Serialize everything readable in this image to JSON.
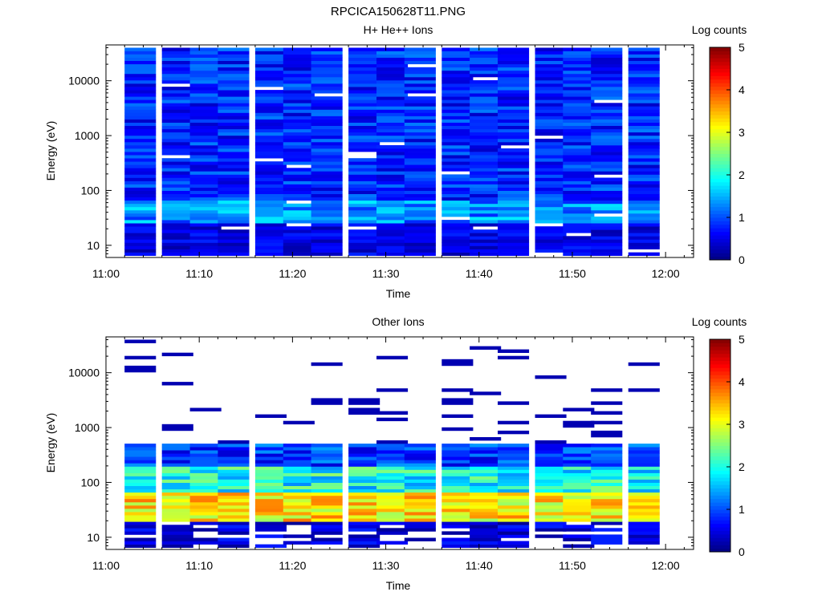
{
  "figure_title": "RPCICA150628T11.PNG",
  "colors": {
    "scale": [
      "#00007f",
      "#0000ff",
      "#007fff",
      "#00ffff",
      "#7fff7f",
      "#ffff00",
      "#ff7f00",
      "#ff0000",
      "#7f0000"
    ]
  },
  "chart_data": [
    {
      "type": "heatmap",
      "title": "H+ He++ Ions",
      "xlabel": "Time",
      "ylabel": "Energy (eV)",
      "x_ticks": [
        "11:00",
        "11:10",
        "11:20",
        "11:30",
        "11:40",
        "11:50",
        "12:00"
      ],
      "y_ticks": [
        "10",
        "100",
        "1000",
        "10000"
      ],
      "y_scale": "log",
      "xlim": [
        "11:00",
        "12:03"
      ],
      "ylim": [
        6,
        45000
      ],
      "colorbar": {
        "label": "Log counts",
        "ticks": [
          "0",
          "1",
          "2",
          "3",
          "4",
          "5"
        ],
        "range": [
          0,
          5
        ]
      },
      "time_columns": [
        "11:02",
        "11:06",
        "11:09",
        "11:12",
        "11:16",
        "11:19",
        "11:22",
        "11:26",
        "11:29",
        "11:32",
        "11:36",
        "11:39",
        "11:42",
        "11:46",
        "11:49",
        "11:52",
        "11:56"
      ],
      "energy_range_eV": [
        6,
        40000
      ],
      "log_counts_level": "mostly 0.3–1.3; blanks (white) at a few energies"
    },
    {
      "type": "heatmap",
      "title": "Other Ions",
      "xlabel": "Time",
      "ylabel": "Energy (eV)",
      "x_ticks": [
        "11:00",
        "11:10",
        "11:20",
        "11:30",
        "11:40",
        "11:50",
        "12:00"
      ],
      "y_ticks": [
        "10",
        "100",
        "1000",
        "10000"
      ],
      "y_scale": "log",
      "xlim": [
        "11:00",
        "12:03"
      ],
      "ylim": [
        6,
        45000
      ],
      "colorbar": {
        "label": "Log counts",
        "ticks": [
          "0",
          "1",
          "2",
          "3",
          "4",
          "5"
        ],
        "range": [
          0,
          5
        ]
      },
      "time_columns": [
        "11:02",
        "11:06",
        "11:09",
        "11:12",
        "11:16",
        "11:19",
        "11:22",
        "11:26",
        "11:29",
        "11:32",
        "11:36",
        "11:39",
        "11:42",
        "11:46",
        "11:49",
        "11:52",
        "11:56"
      ],
      "peak_band_eV": [
        20,
        60
      ],
      "peak_log_counts": 3.7
    }
  ]
}
